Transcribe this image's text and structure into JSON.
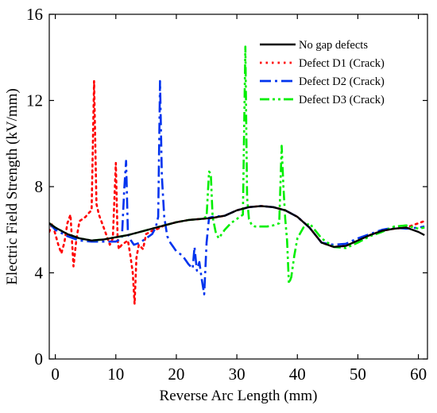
{
  "chart_data": {
    "type": "line",
    "xlabel": "Reverse Arc Length (mm)",
    "ylabel": "Electric Field Strength (kV/mm)",
    "xlim": [
      -1,
      61.5
    ],
    "ylim": [
      0,
      16
    ],
    "xticks": [
      0,
      10,
      20,
      30,
      40,
      50,
      60
    ],
    "yticks": [
      0,
      4,
      8,
      12,
      16
    ],
    "legend_position": "top-right",
    "grid": false,
    "series": [
      {
        "name": "No gap defects",
        "color": "#000000",
        "dash": "solid",
        "x": [
          -1,
          0,
          2,
          4,
          6,
          8,
          10,
          12,
          14,
          16,
          18,
          20,
          22,
          24,
          26,
          28,
          30,
          32,
          34,
          36,
          38,
          40,
          42,
          44,
          46,
          48,
          50,
          52,
          54,
          56,
          58,
          60,
          61
        ],
        "y": [
          6.3,
          6.1,
          5.8,
          5.6,
          5.5,
          5.55,
          5.65,
          5.75,
          5.9,
          6.05,
          6.2,
          6.35,
          6.45,
          6.5,
          6.55,
          6.65,
          6.9,
          7.05,
          7.1,
          7.05,
          6.9,
          6.6,
          6.1,
          5.4,
          5.2,
          5.25,
          5.5,
          5.75,
          5.95,
          6.05,
          6.1,
          5.9,
          5.75
        ]
      },
      {
        "name": "Defect D1 (Crack)",
        "color": "#ff0000",
        "dash": "dot",
        "x": [
          -1,
          -0.5,
          0,
          0.5,
          1,
          1.5,
          2,
          2.5,
          3,
          3.5,
          4,
          5,
          5.6,
          6,
          6.4,
          6.8,
          7.2,
          7.6,
          8,
          8.5,
          9,
          9.5,
          10,
          10.3,
          10.5,
          10.7,
          11,
          11.5,
          12,
          12.4,
          12.8,
          13.1,
          13.4,
          13.8,
          14.5,
          15,
          16,
          17,
          18,
          20,
          22,
          24,
          26,
          28,
          30,
          32,
          34,
          36,
          38,
          40,
          42,
          44,
          46,
          48,
          50,
          52,
          54,
          56,
          58,
          60,
          61
        ],
        "y": [
          5.9,
          6.3,
          5.8,
          5.3,
          4.9,
          5.4,
          6.3,
          6.7,
          4.3,
          5.6,
          6.4,
          6.6,
          6.8,
          6.9,
          12.9,
          7.2,
          6.7,
          6.4,
          6.1,
          5.7,
          5.3,
          5.6,
          9.1,
          5.5,
          5.1,
          5.2,
          5.3,
          5.4,
          5.5,
          4.8,
          4.0,
          2.55,
          4.7,
          5.3,
          5.1,
          5.8,
          5.95,
          6.05,
          6.2,
          6.35,
          6.45,
          6.5,
          6.55,
          6.65,
          6.9,
          7.05,
          7.1,
          7.05,
          6.9,
          6.6,
          6.1,
          5.4,
          5.2,
          5.25,
          5.5,
          5.75,
          5.95,
          6.05,
          6.1,
          6.3,
          6.4
        ]
      },
      {
        "name": "Defect D2 (Crack)",
        "color": "#0033ee",
        "dash": "dashdot",
        "x": [
          -1,
          0,
          2,
          4,
          6,
          8,
          10,
          11,
          11.4,
          11.7,
          12,
          12.5,
          13,
          14,
          15,
          16,
          16.6,
          17,
          17.3,
          17.6,
          18,
          18.5,
          19,
          19.5,
          20,
          21,
          22,
          22.7,
          23,
          23.4,
          23.8,
          24.2,
          24.6,
          25,
          25.4,
          26,
          28,
          30,
          32,
          34,
          36,
          38,
          40,
          42,
          44,
          46,
          48,
          50,
          52,
          54,
          56,
          58,
          60,
          61
        ],
        "y": [
          6.3,
          6.0,
          5.7,
          5.5,
          5.45,
          5.45,
          5.45,
          5.6,
          7.9,
          9.2,
          5.8,
          5.5,
          5.3,
          5.4,
          5.6,
          5.8,
          6.1,
          6.6,
          12.9,
          8.5,
          6.6,
          5.7,
          5.4,
          5.2,
          5.0,
          4.8,
          4.4,
          4.2,
          5.2,
          4.1,
          4.5,
          3.7,
          3.0,
          5.4,
          6.55,
          6.6,
          6.65,
          6.9,
          7.05,
          7.1,
          7.05,
          6.9,
          6.6,
          6.1,
          5.4,
          5.3,
          5.35,
          5.6,
          5.8,
          6.0,
          6.1,
          6.05,
          6.1,
          6.15
        ]
      },
      {
        "name": "Defect D3 (Crack)",
        "color": "#00ee00",
        "dash": "dashdotdot",
        "x": [
          -1,
          0,
          2,
          4,
          6,
          8,
          10,
          12,
          14,
          16,
          18,
          20,
          22,
          24,
          25,
          25.4,
          25.7,
          26,
          26.5,
          27,
          27.5,
          28,
          29,
          30,
          31,
          31.4,
          31.7,
          32,
          32.5,
          33,
          34,
          35,
          36,
          37,
          37.4,
          37.7,
          38,
          38.3,
          38.6,
          39,
          39.5,
          40,
          41,
          42,
          44,
          46,
          48,
          50,
          52,
          54,
          56,
          58,
          60,
          61
        ],
        "y": [
          6.3,
          6.1,
          5.8,
          5.6,
          5.5,
          5.55,
          5.65,
          5.75,
          5.9,
          6.05,
          6.2,
          6.35,
          6.45,
          6.5,
          6.6,
          8.7,
          8.6,
          6.6,
          5.9,
          5.6,
          5.8,
          6.0,
          6.3,
          6.5,
          6.7,
          14.5,
          7.5,
          6.5,
          6.2,
          6.15,
          6.15,
          6.15,
          6.2,
          6.3,
          9.9,
          8.0,
          6.5,
          5.5,
          3.5,
          3.8,
          4.8,
          5.6,
          6.1,
          6.3,
          5.6,
          5.2,
          5.15,
          5.4,
          5.7,
          5.9,
          6.15,
          6.2,
          6.05,
          6.1
        ]
      }
    ]
  }
}
